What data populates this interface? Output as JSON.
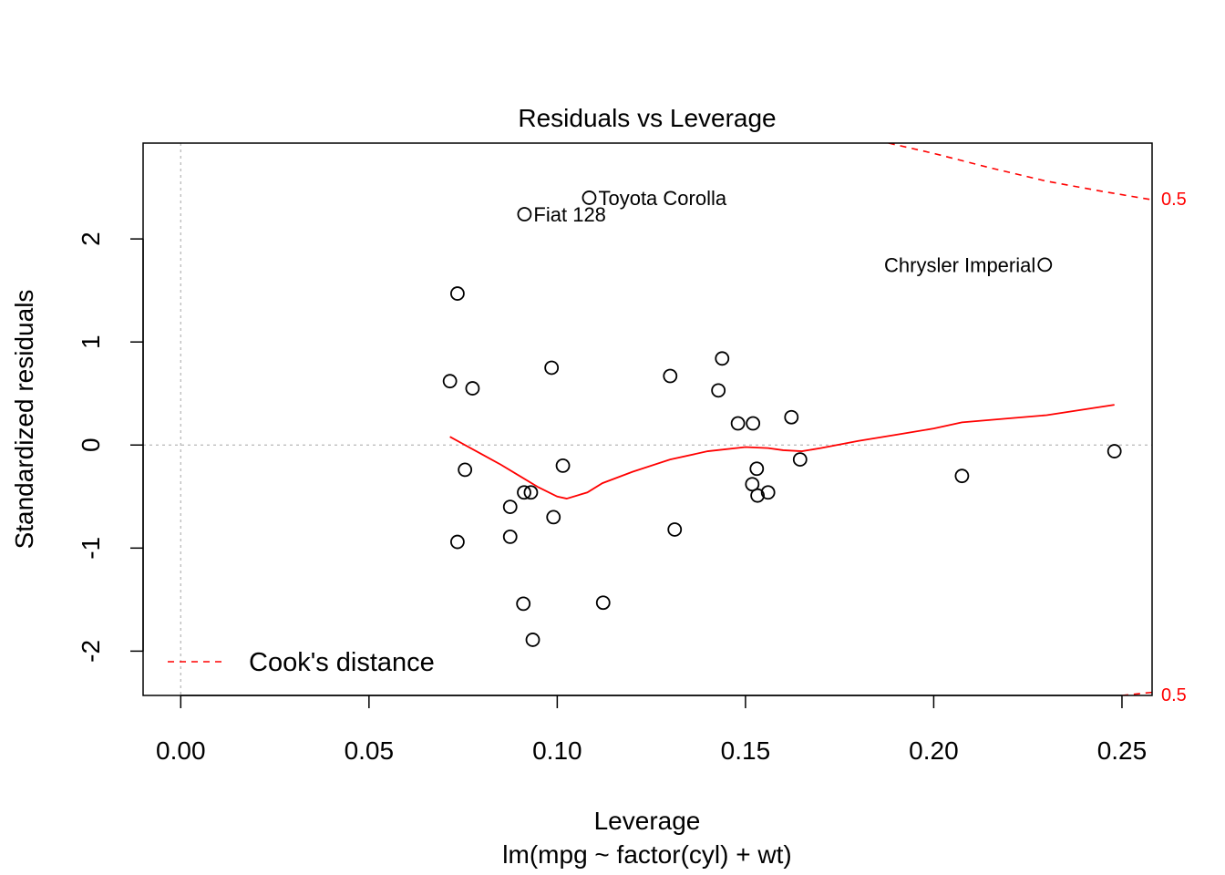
{
  "chart_data": {
    "type": "scatter",
    "title": "Residuals vs Leverage",
    "xlabel": "Leverage",
    "sublabel": "lm(mpg ~ factor(cyl) + wt)",
    "ylabel": "Standardized residuals",
    "xlim": [
      -0.01,
      0.258
    ],
    "ylim": [
      -2.43,
      2.93
    ],
    "xticks": [
      {
        "value": 0.0,
        "label": "0.00"
      },
      {
        "value": 0.05,
        "label": "0.05"
      },
      {
        "value": 0.1,
        "label": "0.10"
      },
      {
        "value": 0.15,
        "label": "0.15"
      },
      {
        "value": 0.2,
        "label": "0.20"
      },
      {
        "value": 0.25,
        "label": "0.25"
      }
    ],
    "yticks": [
      {
        "value": -2,
        "label": "-2"
      },
      {
        "value": -1,
        "label": "-1"
      },
      {
        "value": 0,
        "label": "0"
      },
      {
        "value": 1,
        "label": "1"
      },
      {
        "value": 2,
        "label": "2"
      }
    ],
    "points": [
      {
        "x": 0.0735,
        "y": 1.47
      },
      {
        "x": 0.0715,
        "y": 0.62
      },
      {
        "x": 0.0775,
        "y": 0.55
      },
      {
        "x": 0.0755,
        "y": -0.24
      },
      {
        "x": 0.0735,
        "y": -0.94
      },
      {
        "x": 0.0875,
        "y": -0.6
      },
      {
        "x": 0.0875,
        "y": -0.89
      },
      {
        "x": 0.091,
        "y": -1.54
      },
      {
        "x": 0.0912,
        "y": -0.46
      },
      {
        "x": 0.093,
        "y": -0.46
      },
      {
        "x": 0.0935,
        "y": -1.89
      },
      {
        "x": 0.0913,
        "y": 2.24,
        "label": "Fiat 128"
      },
      {
        "x": 0.0985,
        "y": 0.75
      },
      {
        "x": 0.099,
        "y": -0.7
      },
      {
        "x": 0.1015,
        "y": -0.2
      },
      {
        "x": 0.1085,
        "y": 2.4,
        "label": "Toyota Corolla"
      },
      {
        "x": 0.1122,
        "y": -1.53
      },
      {
        "x": 0.13,
        "y": 0.67
      },
      {
        "x": 0.1312,
        "y": -0.82
      },
      {
        "x": 0.1428,
        "y": 0.53
      },
      {
        "x": 0.1438,
        "y": 0.84
      },
      {
        "x": 0.148,
        "y": 0.21
      },
      {
        "x": 0.152,
        "y": 0.21
      },
      {
        "x": 0.1518,
        "y": -0.38
      },
      {
        "x": 0.153,
        "y": -0.23
      },
      {
        "x": 0.1532,
        "y": -0.49
      },
      {
        "x": 0.156,
        "y": -0.46
      },
      {
        "x": 0.1622,
        "y": 0.27
      },
      {
        "x": 0.1645,
        "y": -0.14
      },
      {
        "x": 0.2075,
        "y": -0.3
      },
      {
        "x": 0.2295,
        "y": 1.75,
        "label": "Chrysler Imperial"
      },
      {
        "x": 0.248,
        "y": -0.06
      }
    ],
    "smooth_line": [
      [
        0.0715,
        0.08
      ],
      [
        0.075,
        0.01
      ],
      [
        0.08,
        -0.09
      ],
      [
        0.085,
        -0.19
      ],
      [
        0.09,
        -0.3
      ],
      [
        0.095,
        -0.41
      ],
      [
        0.1,
        -0.5
      ],
      [
        0.1025,
        -0.52
      ],
      [
        0.108,
        -0.46
      ],
      [
        0.112,
        -0.37
      ],
      [
        0.12,
        -0.26
      ],
      [
        0.13,
        -0.14
      ],
      [
        0.14,
        -0.06
      ],
      [
        0.15,
        -0.02
      ],
      [
        0.156,
        -0.03
      ],
      [
        0.16,
        -0.05
      ],
      [
        0.165,
        -0.06
      ],
      [
        0.17,
        -0.03
      ],
      [
        0.18,
        0.04
      ],
      [
        0.19,
        0.1
      ],
      [
        0.2,
        0.16
      ],
      [
        0.2075,
        0.22
      ],
      [
        0.23,
        0.29
      ],
      [
        0.248,
        0.39
      ]
    ],
    "cooks_curves": [
      {
        "value_label": "0.5",
        "points": [
          [
            0.188,
            2.93
          ],
          [
            0.2,
            2.83
          ],
          [
            0.215,
            2.69
          ],
          [
            0.23,
            2.56
          ],
          [
            0.245,
            2.46
          ],
          [
            0.258,
            2.38
          ]
        ]
      },
      {
        "value_label": "0.5",
        "points": [
          [
            0.25,
            -2.43
          ],
          [
            0.258,
            -2.4
          ]
        ]
      }
    ],
    "reference_lines": {
      "h": 0,
      "v": 0
    },
    "legend": {
      "label": "Cook's distance",
      "position": "bottom-left"
    },
    "colors": {
      "points": "#000000",
      "smooth": "#FF0000",
      "cooks": "#FF0000",
      "reference": "#BEBEBE"
    }
  }
}
